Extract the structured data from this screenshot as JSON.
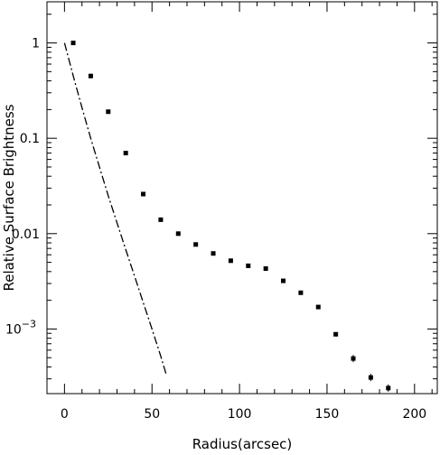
{
  "chart_data": {
    "type": "scatter",
    "title": "",
    "xlabel": "Radius(arcsec)",
    "ylabel": "Relative Surface Brightness",
    "xlim": [
      -10,
      213
    ],
    "ylim": [
      0.00021,
      2.7
    ],
    "y_scale": "log",
    "grid": false,
    "legend": "none",
    "x_ticks": [
      {
        "value": 0,
        "label": "0"
      },
      {
        "value": 50,
        "label": "50"
      },
      {
        "value": 100,
        "label": "100"
      },
      {
        "value": 150,
        "label": "150"
      },
      {
        "value": 200,
        "label": "200"
      }
    ],
    "y_ticks": [
      {
        "value": 1,
        "label": "1"
      },
      {
        "value": 0.1,
        "label": "0.1"
      },
      {
        "value": 0.01,
        "label": "0.01"
      },
      {
        "value": 0.001,
        "label": "10",
        "exponent": "−3"
      }
    ],
    "series": [
      {
        "style": "markers",
        "color": "#000000",
        "x": [
          5,
          15,
          25,
          35,
          45,
          55,
          65,
          75,
          85,
          95,
          105,
          115,
          125,
          135,
          145,
          155,
          165,
          175,
          185
        ],
        "y": [
          1.0,
          0.45,
          0.19,
          0.07,
          0.026,
          0.014,
          0.01,
          0.0077,
          0.0062,
          0.0052,
          0.0046,
          0.0043,
          0.0032,
          0.0024,
          0.0017,
          0.00088,
          0.00049,
          0.00031,
          0.00024
        ]
      },
      {
        "style": "dash-dot",
        "color": "#000000",
        "x": [
          0,
          5,
          10,
          15,
          20,
          25,
          30,
          35,
          40,
          45,
          50,
          55,
          58
        ],
        "y": [
          1.0,
          0.45,
          0.21,
          0.1,
          0.05,
          0.025,
          0.013,
          0.0068,
          0.0036,
          0.0019,
          0.001,
          0.00052,
          0.00034
        ]
      }
    ]
  }
}
